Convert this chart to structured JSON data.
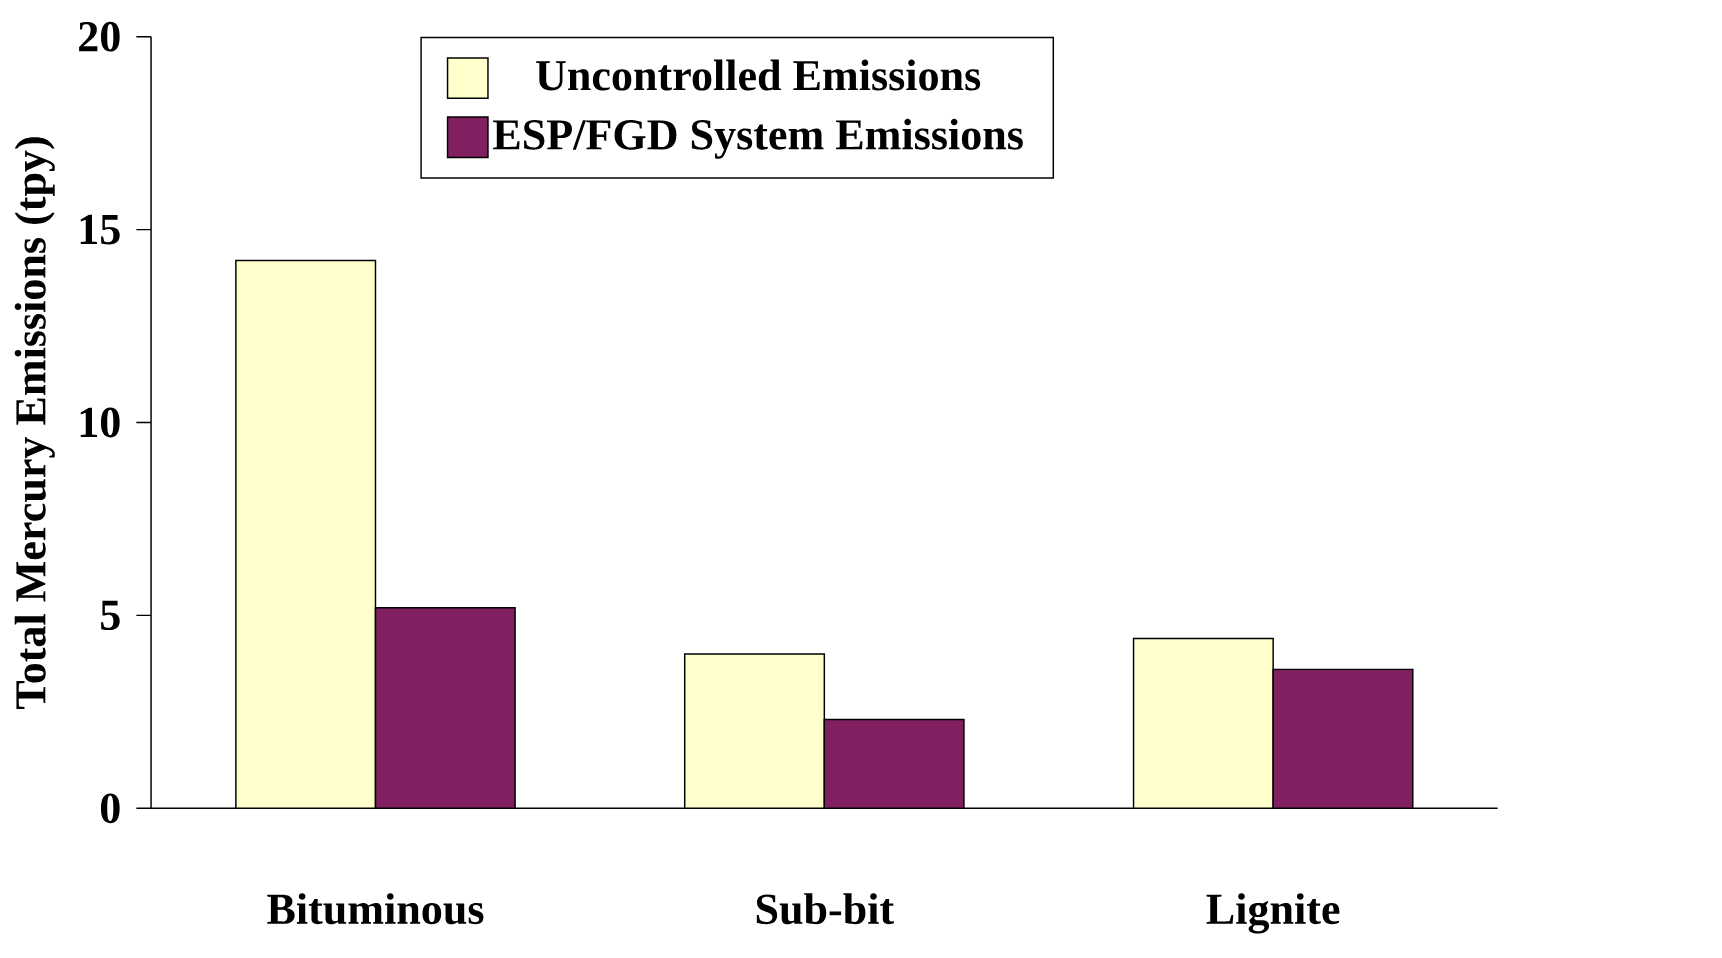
{
  "chart_data": {
    "type": "bar",
    "ylabel": "Total Mercury Emissions (tpy)",
    "categories": [
      "Bituminous",
      "Sub-bit",
      "Lignite"
    ],
    "series": [
      {
        "name": "Uncontrolled Emissions",
        "color": "#ffffcc",
        "values": [
          14.2,
          4.0,
          4.4
        ]
      },
      {
        "name": "ESP/FGD System Emissions",
        "color": "#802060",
        "values": [
          5.2,
          2.3,
          3.6
        ]
      }
    ],
    "ylim": [
      0,
      20
    ],
    "yticks": [
      0,
      5,
      10,
      15,
      20
    ],
    "grid": false,
    "legend": "top"
  }
}
